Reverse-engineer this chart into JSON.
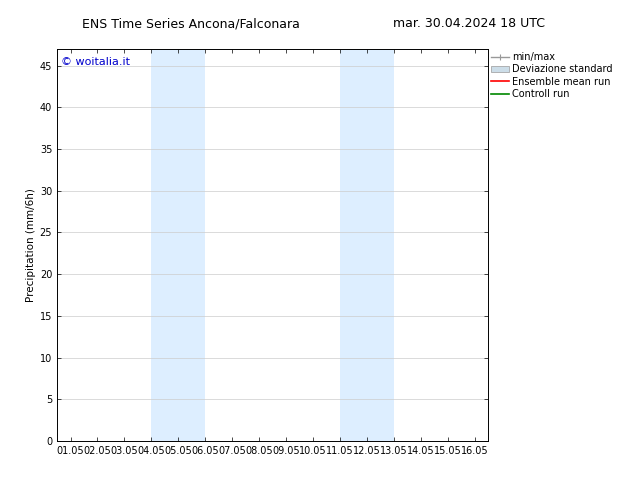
{
  "title_left": "ENS Time Series Ancona/Falconara",
  "title_right": "mar. 30.04.2024 18 UTC",
  "ylabel": "Precipitation (mm/6h)",
  "watermark": "© woitalia.it",
  "watermark_color": "#0000cc",
  "background_color": "#ffffff",
  "plot_bg_color": "#ffffff",
  "ylim": [
    0,
    47
  ],
  "yticks": [
    0,
    5,
    10,
    15,
    20,
    25,
    30,
    35,
    40,
    45
  ],
  "x_labels": [
    "01.05",
    "02.05",
    "03.05",
    "04.05",
    "05.05",
    "06.05",
    "07.05",
    "08.05",
    "09.05",
    "10.05",
    "11.05",
    "12.05",
    "13.05",
    "14.05",
    "15.05",
    "16.05"
  ],
  "x_positions": [
    1,
    2,
    3,
    4,
    5,
    6,
    7,
    8,
    9,
    10,
    11,
    12,
    13,
    14,
    15,
    16
  ],
  "shaded_regions": [
    {
      "xmin": 4.0,
      "xmax": 6.0,
      "color": "#ddeeff"
    },
    {
      "xmin": 11.0,
      "xmax": 13.0,
      "color": "#ddeeff"
    }
  ],
  "xlim": [
    0.5,
    16.5
  ],
  "legend_entries": [
    {
      "label": "min/max",
      "color": "#999999",
      "style": "errorbar"
    },
    {
      "label": "Deviazione standard",
      "color": "#ccdde8",
      "style": "fill"
    },
    {
      "label": "Ensemble mean run",
      "color": "#ff0000",
      "style": "line"
    },
    {
      "label": "Controll run",
      "color": "#008800",
      "style": "line"
    }
  ],
  "title_fontsize": 9,
  "axis_fontsize": 7.5,
  "tick_fontsize": 7,
  "watermark_fontsize": 8,
  "legend_fontsize": 7,
  "grid_color": "#cccccc",
  "border_color": "#000000"
}
